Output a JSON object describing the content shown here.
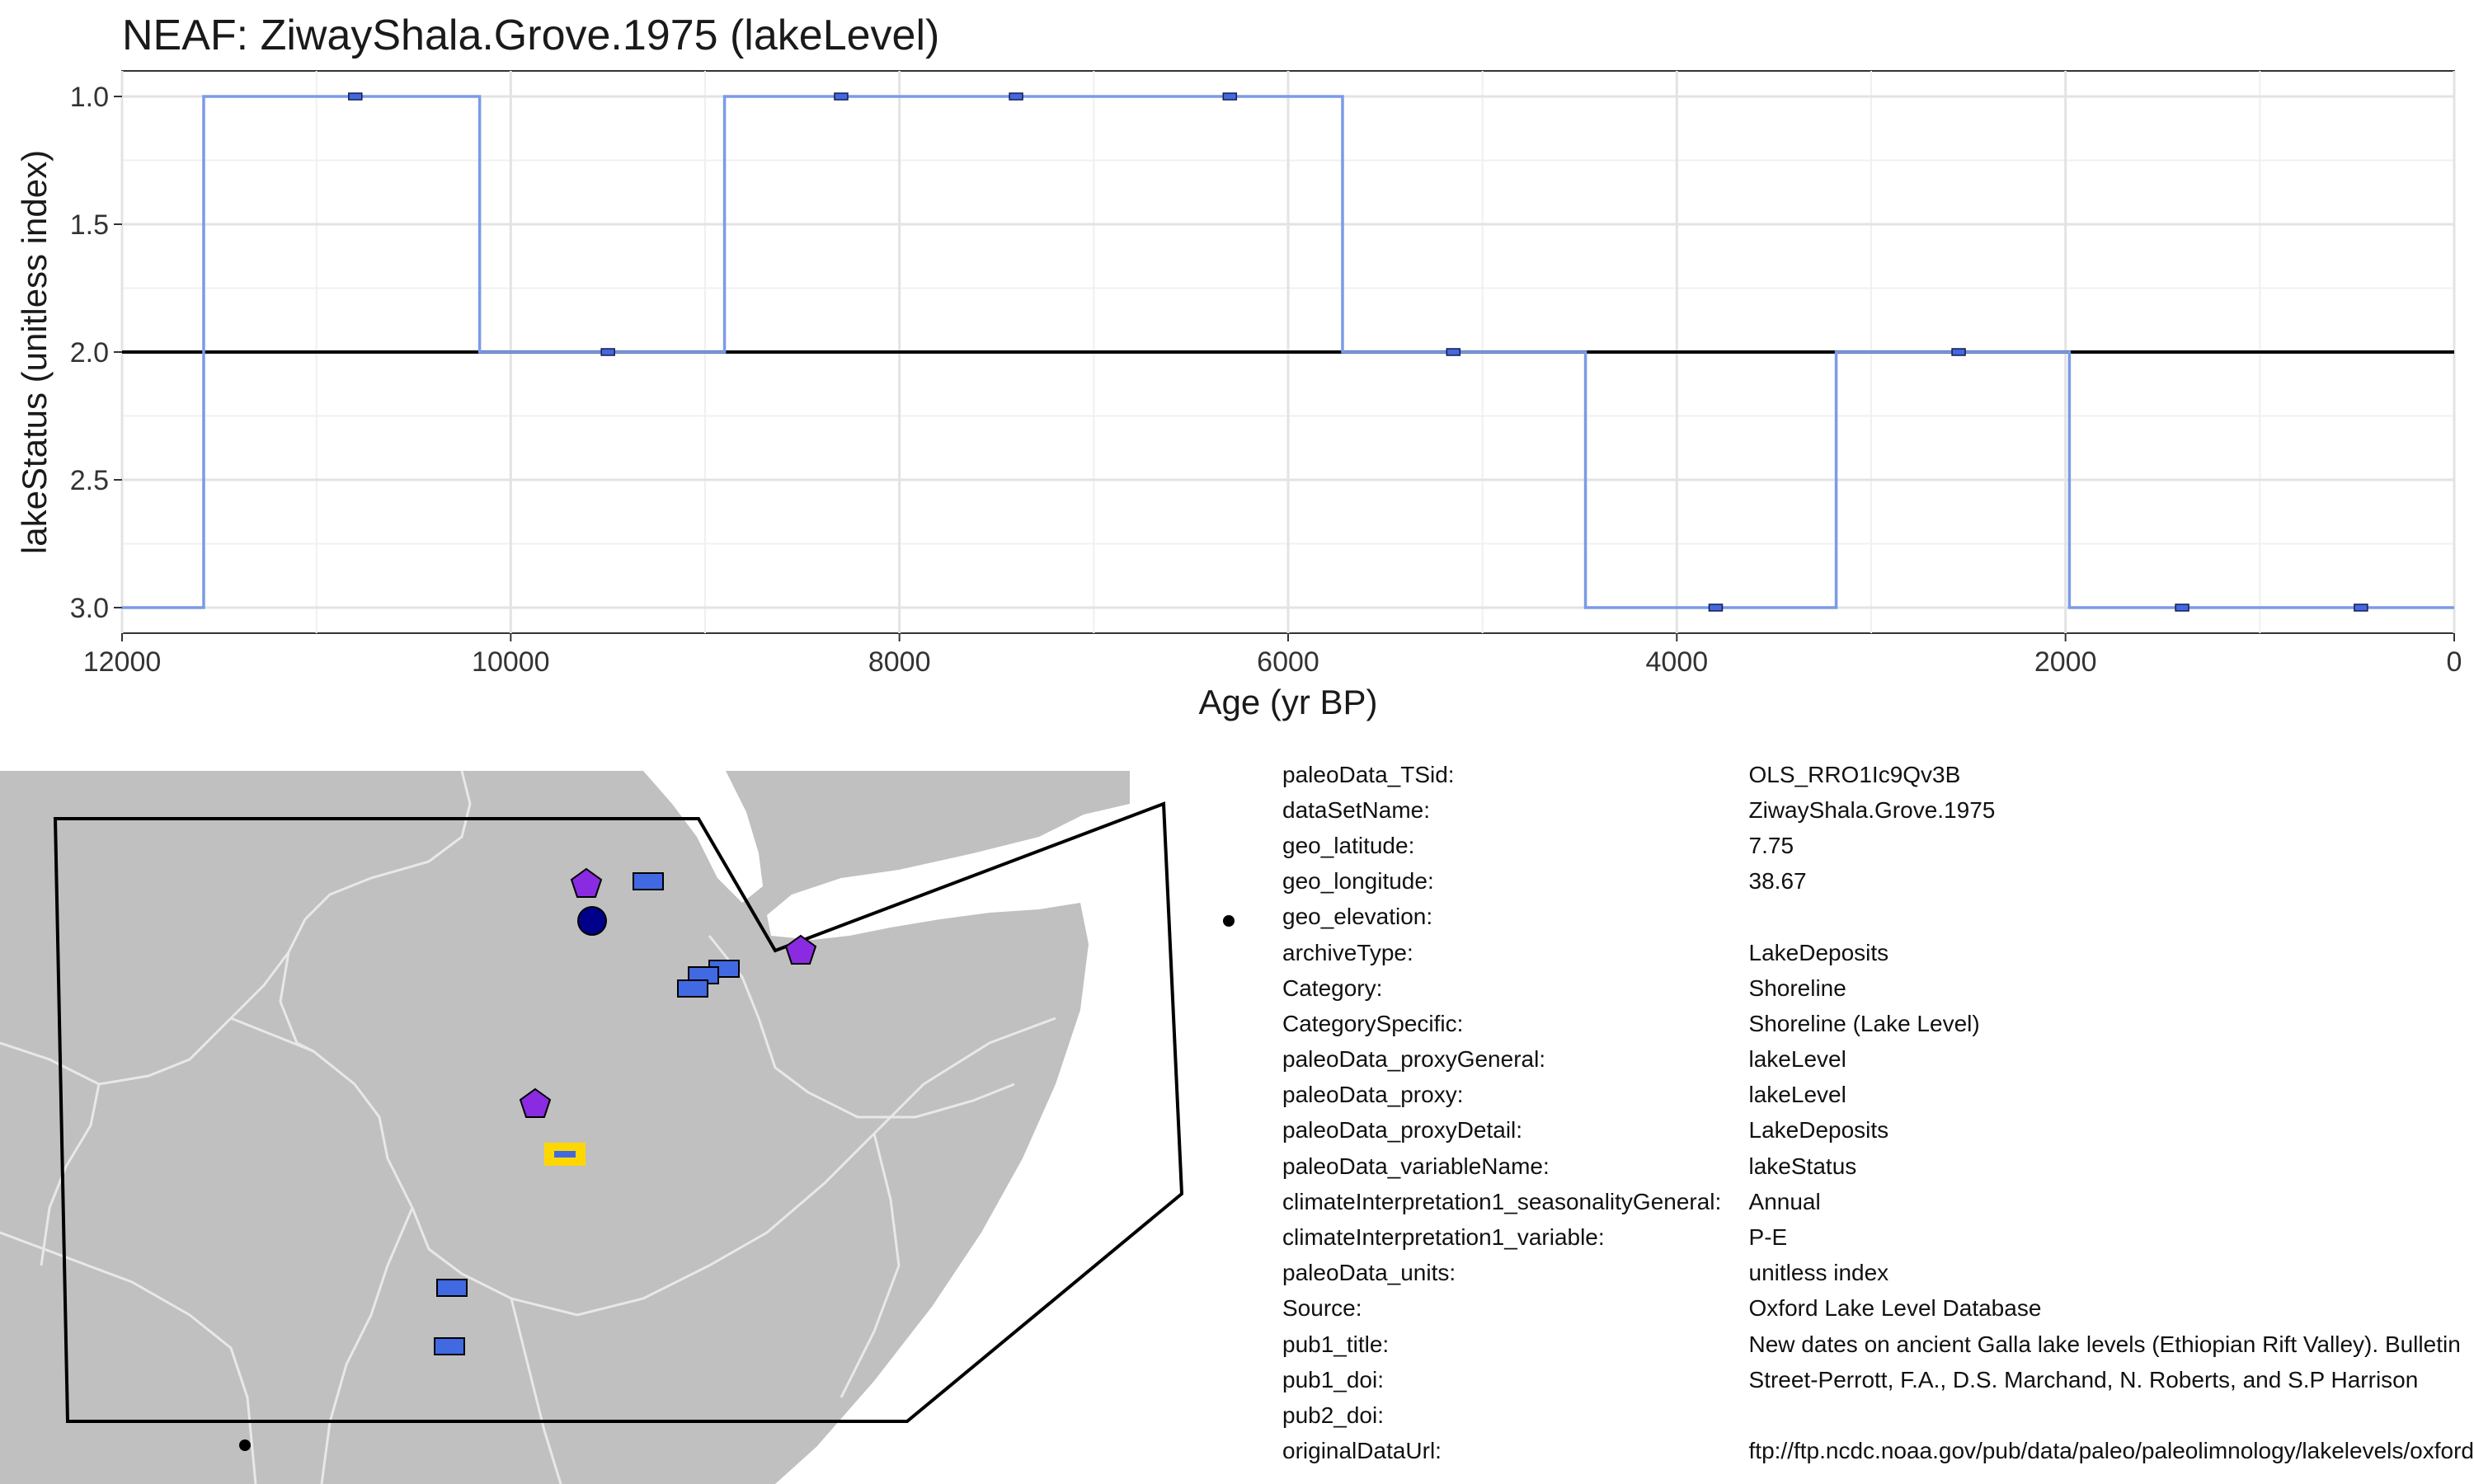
{
  "chart_data": {
    "type": "line",
    "title": "NEAF: ZiwayShala.Grove.1975 (lakeLevel)",
    "xlabel": "Age (yr BP)",
    "ylabel": "lakeStatus (unitless index)",
    "xlim": [
      12000,
      0
    ],
    "ylim": [
      3.1,
      0.9
    ],
    "x_reversed": true,
    "y_reversed": true,
    "x_ticks": [
      12000,
      10000,
      8000,
      6000,
      4000,
      2000,
      0
    ],
    "y_ticks": [
      1.0,
      1.5,
      2.0,
      2.5,
      3.0
    ],
    "x_tick_labels": [
      "12000",
      "10000",
      "8000",
      "6000",
      "4000",
      "2000",
      "0"
    ],
    "y_tick_labels": [
      "1.0",
      "1.5",
      "2.0",
      "2.5",
      "3.0"
    ],
    "reference_line_y": 2.0,
    "grid": true,
    "line_color": "#7b9be8",
    "point_color": "#4169e1",
    "step_x": [
      12000,
      11580,
      11580,
      10160,
      10160,
      8900,
      8900,
      5720,
      5720,
      4470,
      4470,
      3180,
      3180,
      1980,
      1980,
      0
    ],
    "step_y": [
      3,
      3,
      1,
      1,
      2,
      2,
      1,
      1,
      2,
      2,
      3,
      3,
      2,
      2,
      3,
      3
    ],
    "points": [
      {
        "x": 10800,
        "y": 1
      },
      {
        "x": 9500,
        "y": 2
      },
      {
        "x": 8300,
        "y": 1
      },
      {
        "x": 7400,
        "y": 1
      },
      {
        "x": 6300,
        "y": 1
      },
      {
        "x": 5150,
        "y": 2
      },
      {
        "x": 3800,
        "y": 3
      },
      {
        "x": 2550,
        "y": 2
      },
      {
        "x": 1400,
        "y": 3
      },
      {
        "x": 480,
        "y": 3
      }
    ]
  },
  "map": {
    "land_color": "#c0c0c0",
    "border_color": "#e6e6e6",
    "legend_sites": [
      {
        "shape": "pentagon",
        "color": "#8a2be2"
      },
      {
        "shape": "rectangle",
        "color": "#4169e1"
      },
      {
        "shape": "circle",
        "color": "#00008b"
      },
      {
        "shape": "rectangle-highlight",
        "color": "#4169e1",
        "highlight": "#ffd700"
      }
    ]
  },
  "metadata": [
    {
      "key": "paleoData_TSid:",
      "value": "OLS_RRO1Ic9Qv3B"
    },
    {
      "key": "dataSetName:",
      "value": "ZiwayShala.Grove.1975"
    },
    {
      "key": "geo_latitude:",
      "value": "7.75"
    },
    {
      "key": "geo_longitude:",
      "value": "38.67"
    },
    {
      "key": "geo_elevation:",
      "value": ""
    },
    {
      "key": "archiveType:",
      "value": "LakeDeposits"
    },
    {
      "key": "Category:",
      "value": "Shoreline"
    },
    {
      "key": "CategorySpecific:",
      "value": "Shoreline (Lake Level)"
    },
    {
      "key": "paleoData_proxyGeneral:",
      "value": "lakeLevel"
    },
    {
      "key": "paleoData_proxy:",
      "value": "lakeLevel"
    },
    {
      "key": "paleoData_proxyDetail:",
      "value": "LakeDeposits"
    },
    {
      "key": "paleoData_variableName:",
      "value": "lakeStatus"
    },
    {
      "key": "climateInterpretation1_seasonalityGeneral:",
      "value": "Annual"
    },
    {
      "key": "climateInterpretation1_variable:",
      "value": "P-E"
    },
    {
      "key": "paleoData_units:",
      "value": "unitless index"
    },
    {
      "key": "Source:",
      "value": "Oxford Lake Level Database"
    },
    {
      "key": "pub1_title:",
      "value": "New dates on ancient Galla lake levels (Ethiopian Rift Valley). Bulletin"
    },
    {
      "key": "pub1_doi:",
      "value": "Street-Perrott, F.A., D.S. Marchand, N. Roberts, and S.P Harrison"
    },
    {
      "key": "pub2_doi:",
      "value": ""
    },
    {
      "key": "originalDataUrl:",
      "value": "ftp://ftp.ncdc.noaa.gov/pub/data/paleo/paleolimnology/lakelevels/oxford"
    }
  ]
}
